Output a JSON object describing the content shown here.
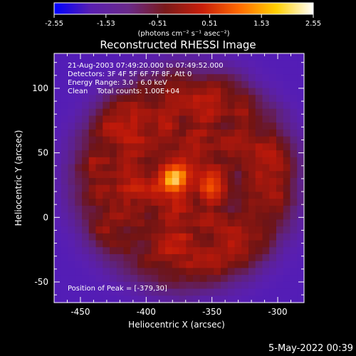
{
  "chart_data": {
    "type": "heatmap",
    "title": "Reconstructed RHESSI Image",
    "xlabel": "Heliocentric X (arcsec)",
    "ylabel": "Heliocentric Y (arcsec)",
    "xlim": [
      -470,
      -280
    ],
    "ylim": [
      -66,
      127
    ],
    "x_ticks": [
      -450,
      -400,
      -350,
      -300
    ],
    "x_tick_labels": [
      "-450",
      "-400",
      "-350",
      "-300"
    ],
    "y_ticks": [
      -50,
      0,
      50,
      100
    ],
    "y_tick_labels": [
      "-50",
      "0",
      "50",
      "100"
    ],
    "colorbar": {
      "range": [
        -2.55,
        2.55
      ],
      "ticks": [
        -2.55,
        -1.53,
        -0.51,
        0.51,
        1.53,
        2.55
      ],
      "tick_labels": [
        "-2.55",
        "-1.53",
        "-0.51",
        "0.51",
        "1.53",
        "2.55"
      ],
      "units_label": "(photons cm⁻² s⁻¹ asec⁻²)",
      "colormap_stops": [
        "#0000ff",
        "#5a1fb0",
        "#6a2a8a",
        "#7a1a1a",
        "#c81e0a",
        "#ff6a00",
        "#ffd000",
        "#ffffff"
      ]
    },
    "annotations": [
      "21-Aug-2003 07:49:20.000 to 07:49:52.000",
      "Detectors: 3F 4F 5F 6F 7F 8F, Att 0",
      "Energy Range: 3.0 - 6.0 keV",
      "Clean    Total counts: 1.00E+04",
      "Position of Peak = [-379,30]"
    ],
    "peak": {
      "x": -379,
      "y": 30,
      "value": 2.55
    },
    "source_disk": {
      "center_x": -370,
      "center_y": 30,
      "radius": 85
    },
    "secondary_source": {
      "x": -352,
      "y": 23,
      "value": 1.6
    }
  },
  "footer": {
    "timestamp": "5-May-2022 00:39"
  }
}
